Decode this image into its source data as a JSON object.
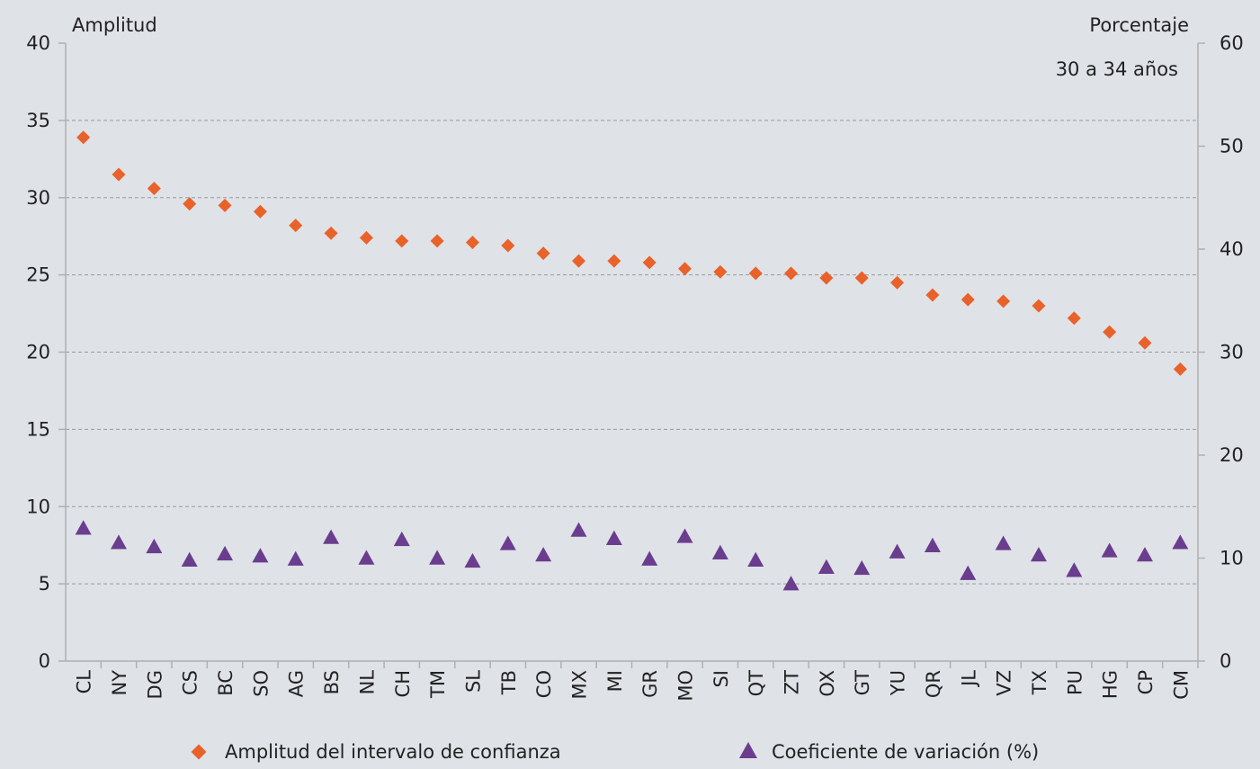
{
  "chart_data": {
    "type": "scatter",
    "subtitle": "30 a 34 años",
    "ylabel_left": "Amplitud",
    "ylabel_right": "Porcentaje",
    "ylim_left": [
      0,
      40
    ],
    "yticks_left": [
      "0",
      "5",
      "10",
      "15",
      "20",
      "25",
      "30",
      "35",
      "40"
    ],
    "ylim_right": [
      0,
      60
    ],
    "yticks_right": [
      "0",
      "10",
      "20",
      "30",
      "40",
      "50",
      "60"
    ],
    "categories": [
      "CL",
      "NY",
      "DG",
      "CS",
      "BC",
      "SO",
      "AG",
      "BS",
      "NL",
      "CH",
      "TM",
      "SL",
      "TB",
      "CO",
      "MX",
      "MI",
      "GR",
      "MO",
      "SI",
      "QT",
      "ZT",
      "OX",
      "GT",
      "YU",
      "QR",
      "JL",
      "VZ",
      "TX",
      "PU",
      "HG",
      "CP",
      "CM"
    ],
    "grid": "horizontal dashed",
    "legend_position": "bottom",
    "series": [
      {
        "name": "Amplitud del intervalo de confianza",
        "axis": "left",
        "marker": "diamond",
        "color": "#e8622a",
        "values": [
          33.9,
          31.5,
          30.6,
          29.6,
          29.5,
          29.1,
          28.2,
          27.7,
          27.4,
          27.2,
          27.2,
          27.1,
          26.9,
          26.4,
          25.9,
          25.9,
          25.8,
          25.4,
          25.2,
          25.1,
          25.1,
          24.8,
          24.8,
          24.5,
          23.7,
          23.4,
          23.3,
          23.0,
          22.2,
          21.3,
          20.6,
          18.9
        ]
      },
      {
        "name": "Coeficiente de variación (%)",
        "axis": "right",
        "marker": "triangle",
        "color": "#6a3d8e",
        "values": [
          12.9,
          11.5,
          11.1,
          9.8,
          10.4,
          10.2,
          9.9,
          12.0,
          10.0,
          11.8,
          10.0,
          9.7,
          11.4,
          10.3,
          12.7,
          11.9,
          9.9,
          12.1,
          10.5,
          9.8,
          7.5,
          9.1,
          9.0,
          10.6,
          11.2,
          8.5,
          11.4,
          10.3,
          8.8,
          10.7,
          10.3,
          11.5
        ]
      }
    ]
  }
}
